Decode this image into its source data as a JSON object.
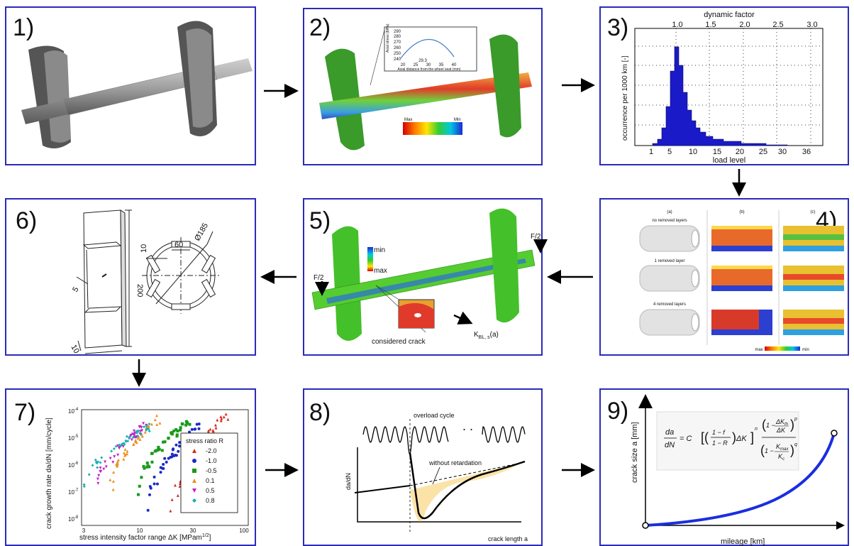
{
  "panels": [
    {
      "number": "1)"
    },
    {
      "number": "2)",
      "inset": {
        "y_label": "Axial stress (MPa)",
        "y_ticks": [
          "290",
          "280",
          "270",
          "260",
          "250",
          "240"
        ],
        "x_ticks": [
          "20",
          "25",
          "30",
          "35",
          "40"
        ],
        "peak": "29.3",
        "x_label": "Axial distance from the wheel seat (mm)"
      },
      "colorbar": [
        "Max",
        "Min"
      ]
    },
    {
      "number": "3)",
      "top_axis": "dynamic factor",
      "top_ticks": [
        "1.0",
        "1.5",
        "2.0",
        "2.5",
        "3.0"
      ],
      "y_label": "occurrence per 1000 km [-]",
      "x_ticks": [
        "1",
        "5",
        "10",
        "15",
        "20",
        "25",
        "30",
        "36"
      ],
      "x_label": "load level"
    },
    {
      "number": "4)",
      "columns": [
        "(a)",
        "(b)",
        "(c)"
      ],
      "rows": [
        "no removed layers",
        "1 removed layer",
        "4 removed layers"
      ],
      "colorbar": [
        "max",
        "min"
      ]
    },
    {
      "number": "5)",
      "colorbar": [
        "min",
        "max"
      ],
      "loads": [
        "F/2",
        "F/2"
      ],
      "crack": "considered crack",
      "k_label": "K",
      "k_sub": "BL, s",
      "k_arg": "(a)"
    },
    {
      "number": "6)",
      "dims": [
        "10",
        "60",
        "Ø185",
        "5",
        "200",
        "10"
      ]
    },
    {
      "number": "7)",
      "y_label": "crack growth rate da/dN [mm/cycle]",
      "x_label": "stress intensity factor range ΔK [MPam",
      "x_label_sup": "1/2",
      "x_label_end": "]",
      "y_ticks": [
        {
          "base": "10",
          "exp": "-4"
        },
        {
          "base": "10",
          "exp": "-5"
        },
        {
          "base": "10",
          "exp": "-6"
        },
        {
          "base": "10",
          "exp": "-7"
        },
        {
          "base": "10",
          "exp": "-8"
        }
      ],
      "x_ticks": [
        "3",
        "10",
        "30",
        "100"
      ],
      "legend_title": "stress ratio R",
      "legend": [
        "-2.0",
        "-1.0",
        "-0.5",
        "0.1",
        "0.5",
        "0.8"
      ]
    },
    {
      "number": "8)",
      "overload": "overload cycle",
      "without": "without retardation",
      "dots": ". .",
      "y_label": "da/dN",
      "x_label": "crack length a"
    },
    {
      "number": "9)",
      "y_label": "crack size a [mm]",
      "x_label": "mileage [km]",
      "formula": {
        "da": "da",
        "dN": "dN",
        "eq": "= C",
        "f_num": "1 − f",
        "f_den": "1 − R",
        "dK": "ΔK",
        "n": "n",
        "one_minus": "1 −",
        "dKth": "ΔK",
        "th": "th",
        "dK2": "ΔK",
        "p": "p",
        "one_minus2": "1 −",
        "Kmax": "K",
        "max": "max",
        "Kc": "K",
        "c": "c",
        "q": "q"
      }
    }
  ]
}
